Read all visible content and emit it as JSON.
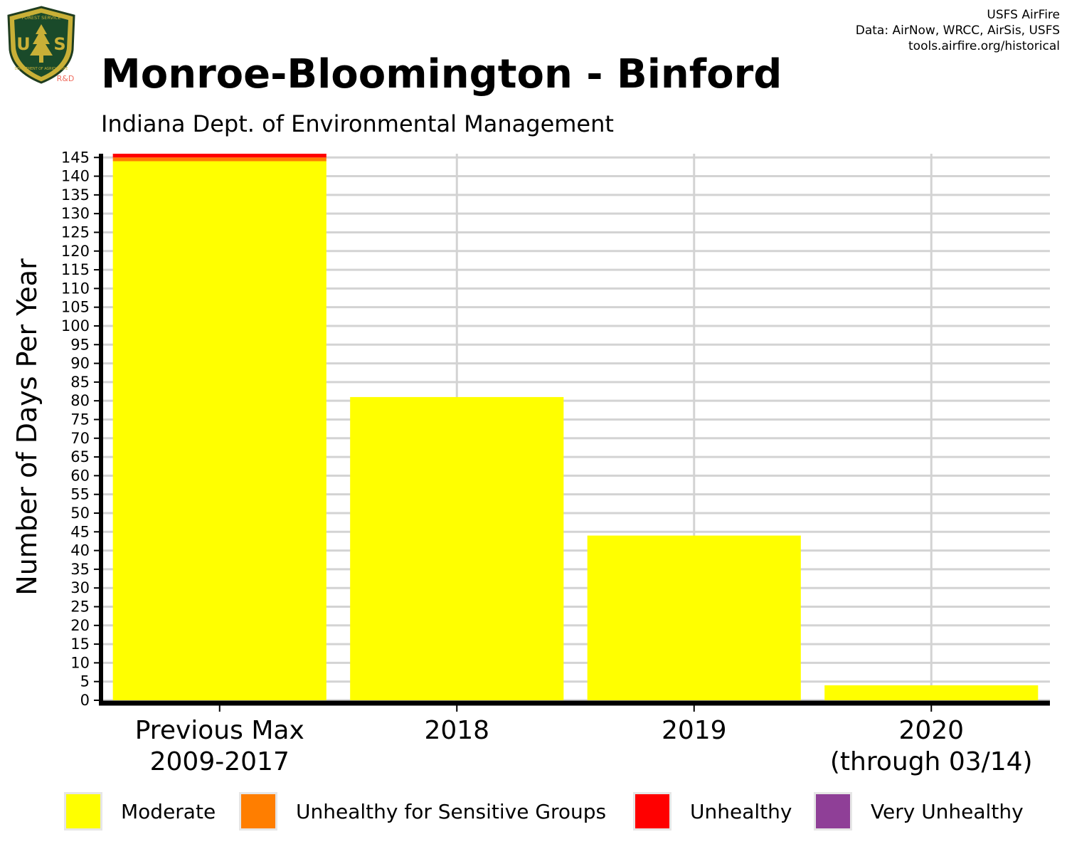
{
  "header": {
    "title": "Monroe-Bloomington - Binford",
    "subtitle": "Indiana Dept. of Environmental Management"
  },
  "credits": {
    "line1": "USFS AirFire",
    "line2": "Data: AirNow, WRCC, AirSis, USFS",
    "line3": "tools.airfire.org/historical"
  },
  "logo": {
    "top_text": "FOREST SERVICE",
    "letters": "U S",
    "bottom_text": "DEPARTMENT OF AGRICULTURE",
    "badge": "R&D"
  },
  "colors": {
    "moderate": "#ffff00",
    "usg": "#ff7e00",
    "unhealthy": "#ff0000",
    "very_unhealthy": "#8f3f97",
    "grid": "#d3d3d3"
  },
  "chart_data": {
    "type": "bar",
    "stacked": true,
    "categories": [
      "Previous Max\n2009-2017",
      "2018",
      "2019",
      "2020\n(through 03/14)"
    ],
    "series": [
      {
        "name": "Moderate",
        "color": "#ffff00",
        "values": [
          144,
          81,
          44,
          4
        ]
      },
      {
        "name": "Unhealthy for Sensitive Groups",
        "color": "#ff7e00",
        "values": [
          1,
          0,
          0,
          0
        ]
      },
      {
        "name": "Unhealthy",
        "color": "#ff0000",
        "values": [
          1,
          0,
          0,
          0
        ]
      },
      {
        "name": "Very Unhealthy",
        "color": "#8f3f97",
        "values": [
          0,
          0,
          0,
          0
        ]
      }
    ],
    "ylabel": "Number of Days Per Year",
    "ylim": [
      0,
      146
    ],
    "yticks": [
      0,
      5,
      10,
      15,
      20,
      25,
      30,
      35,
      40,
      45,
      50,
      55,
      60,
      65,
      70,
      75,
      80,
      85,
      90,
      95,
      100,
      105,
      110,
      115,
      120,
      125,
      130,
      135,
      140,
      145
    ],
    "grid": true,
    "legend_position": "bottom"
  }
}
